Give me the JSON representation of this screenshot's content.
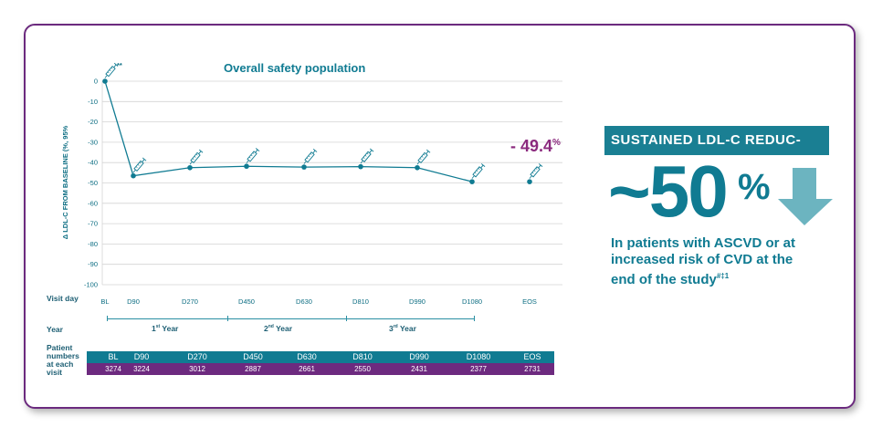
{
  "chart_data": {
    "type": "line",
    "title": "Overall safety population",
    "ylabel": "Δ LDL-C FROM BASELINE (%, 95%",
    "ylim": [
      -100,
      0
    ],
    "yticks": [
      0,
      -10,
      -20,
      -30,
      -40,
      -50,
      -60,
      -70,
      -80,
      -90,
      -100
    ],
    "grid": true,
    "categories": [
      "BL",
      "D90",
      "D270",
      "D450",
      "D630",
      "D810",
      "D990",
      "D1080",
      "EOS"
    ],
    "series": [
      {
        "name": "LDL-C change from baseline",
        "values": [
          0,
          -46.5,
          -42.5,
          -41.8,
          -42.2,
          -42.0,
          -42.5,
          -49.4,
          -49.4
        ],
        "connected_points": 8
      }
    ],
    "injection_markers": [
      "BL",
      "D90",
      "D270",
      "D450",
      "D630",
      "D810",
      "D990",
      "D1080",
      "EOS"
    ],
    "first_marker_note": "**",
    "annotation": {
      "value": "- 49.4",
      "unit": "%"
    }
  },
  "labels": {
    "visit_day": "Visit day",
    "year": "Year",
    "patient_numbers": [
      "Patient",
      "numbers",
      "at each",
      "visit"
    ]
  },
  "years": [
    {
      "num": "1",
      "sup": "st",
      "word": "Year"
    },
    {
      "num": "2",
      "sup": "nd",
      "word": "Year"
    },
    {
      "num": "3",
      "sup": "rd",
      "word": "Year"
    }
  ],
  "patient_table": {
    "visits": [
      "BL",
      "D90",
      "D270",
      "D450",
      "D630",
      "D810",
      "D990",
      "D1080",
      "EOS"
    ],
    "counts": [
      "3274",
      "3224",
      "3012",
      "2887",
      "2661",
      "2550",
      "2431",
      "2377",
      "2731"
    ]
  },
  "panel": {
    "banner": "SUSTAINED LDL-C REDUC-",
    "big_number": "~50",
    "big_unit": "%",
    "description": "In patients with ASCVD or at increased risk of CVD at the end of the study",
    "description_sup": "#‡1"
  },
  "colors": {
    "teal": "#107b92",
    "purple": "#6d2a7f",
    "arrow": "#6cb4c0",
    "grid": "#d4d4d4"
  }
}
